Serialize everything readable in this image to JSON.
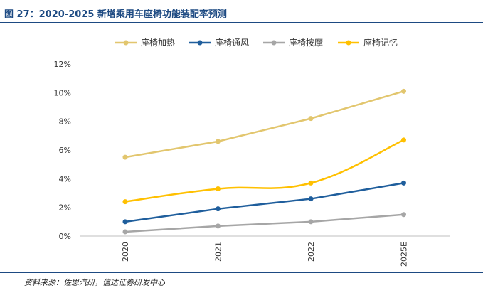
{
  "figure": {
    "title": "图 27：2020-2025 新增乘用车座椅功能装配率预测",
    "source": "资料来源：佐思汽研，信达证券研发中心"
  },
  "chart_data": {
    "type": "line",
    "title": "",
    "xlabel": "",
    "ylabel": "",
    "categories": [
      "2020",
      "2021",
      "2022",
      "2025E"
    ],
    "ylim": [
      0,
      12
    ],
    "yticks": [
      "0%",
      "2%",
      "4%",
      "6%",
      "8%",
      "10%",
      "12%"
    ],
    "grid": false,
    "legend": "top",
    "series": [
      {
        "name": "座椅加热",
        "color": "#e2c66e",
        "smooth": false,
        "values": [
          5.5,
          6.6,
          8.2,
          10.1
        ]
      },
      {
        "name": "座椅通风",
        "color": "#1f5e9c",
        "smooth": false,
        "values": [
          1.0,
          1.9,
          2.6,
          3.7
        ]
      },
      {
        "name": "座椅按摩",
        "color": "#a6a6a6",
        "smooth": false,
        "values": [
          0.3,
          0.7,
          1.0,
          1.5
        ]
      },
      {
        "name": "座椅记忆",
        "color": "#ffc000",
        "smooth": true,
        "values": [
          2.4,
          3.3,
          3.7,
          6.7
        ]
      }
    ]
  }
}
